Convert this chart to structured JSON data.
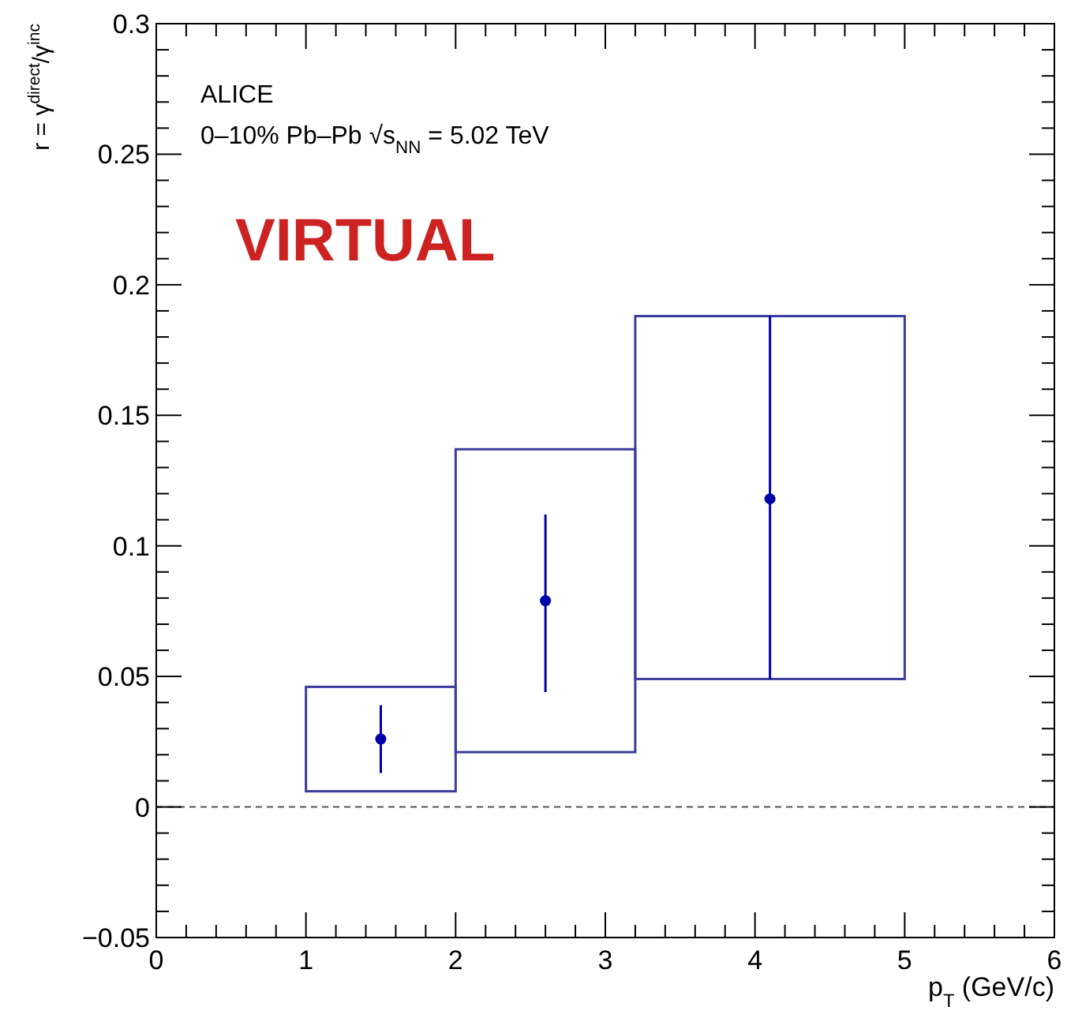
{
  "chart_data": {
    "type": "scatter",
    "xlabel": "p$_{T}$ (GeV/c)",
    "ylabel": "r = γ$^{direct}$/γ$^{inc}$",
    "annotations": [
      "ALICE",
      "0–10% Pb–Pb √s$_{NN}$ = 5.02 TeV",
      "VIRTUAL"
    ],
    "x": [
      1.5,
      2.6,
      4.1
    ],
    "series": [
      {
        "type": "histogram",
        "color": "#3c3c9c",
        "bins": [
          1,
          2,
          3.2,
          5
        ],
        "base": [
          0.006,
          0.021,
          0.049
        ],
        "values": [
          0.04,
          0.116,
          0.139
        ]
      },
      {
        "color": "#0000a8",
        "marker": "circle",
        "values": [
          0.026,
          0.079,
          0.118
        ],
        "errors": [
          [
            0.013,
            0.039
          ],
          [
            0.044,
            0.112
          ],
          [
            0.049,
            0.188
          ]
        ]
      }
    ],
    "xlim": [
      0,
      6
    ],
    "xticks": [
      0,
      1,
      2,
      3,
      4,
      5,
      6
    ],
    "ylim": [
      -0.05,
      0.3
    ],
    "yticks": [
      {
        "value": -0.05,
        "label": "−0.05"
      },
      0,
      0.05,
      0.1,
      0.15,
      0.2,
      0.25,
      0.3
    ],
    "ref_lines": [
      {
        "axis": "y",
        "value": 0,
        "line_style": "dashed",
        "color": "#555555"
      }
    ],
    "grid": false
  }
}
